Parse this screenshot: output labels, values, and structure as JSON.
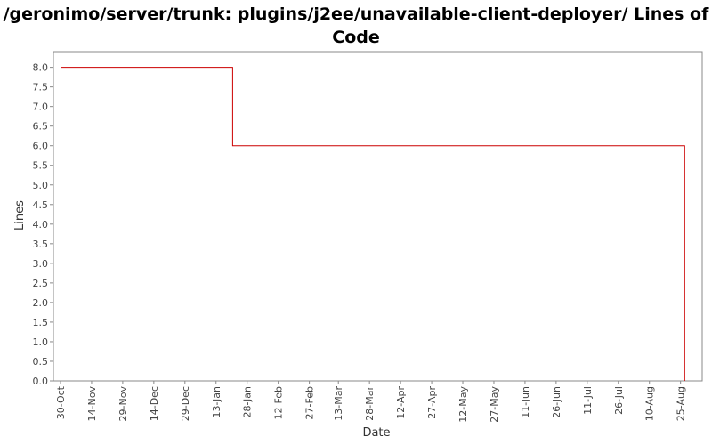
{
  "chart_data": {
    "type": "line",
    "title": "/geronimo/server/trunk: plugins/j2ee/unavailable-client-deployer/ Lines of Code",
    "xlabel": "Date",
    "ylabel": "Lines",
    "ylim": [
      0.0,
      8.4
    ],
    "y_ticks": [
      "0.0",
      "0.5",
      "1.0",
      "1.5",
      "2.0",
      "2.5",
      "3.0",
      "3.5",
      "4.0",
      "4.5",
      "5.0",
      "5.5",
      "6.0",
      "6.5",
      "7.0",
      "7.5",
      "8.0"
    ],
    "x_tick_labels": [
      "30-Oct",
      "14-Nov",
      "29-Nov",
      "14-Dec",
      "29-Dec",
      "13-Jan",
      "28-Jan",
      "12-Feb",
      "27-Feb",
      "13-Mar",
      "28-Mar",
      "12-Apr",
      "27-Apr",
      "12-May",
      "27-May",
      "11-Jun",
      "26-Jun",
      "11-Jul",
      "26-Jul",
      "10-Aug",
      "25-Aug"
    ],
    "grid": false,
    "line_color": "#cc0000",
    "series": [
      {
        "step": true,
        "points": [
          {
            "x": "30-Oct",
            "y": 8.0
          },
          {
            "x": "21-Jan",
            "y": 8.0
          },
          {
            "x": "21-Jan",
            "y": 6.0
          },
          {
            "x": "27-Aug",
            "y": 6.0
          },
          {
            "x": "27-Aug",
            "y": 0.0
          }
        ]
      }
    ]
  }
}
